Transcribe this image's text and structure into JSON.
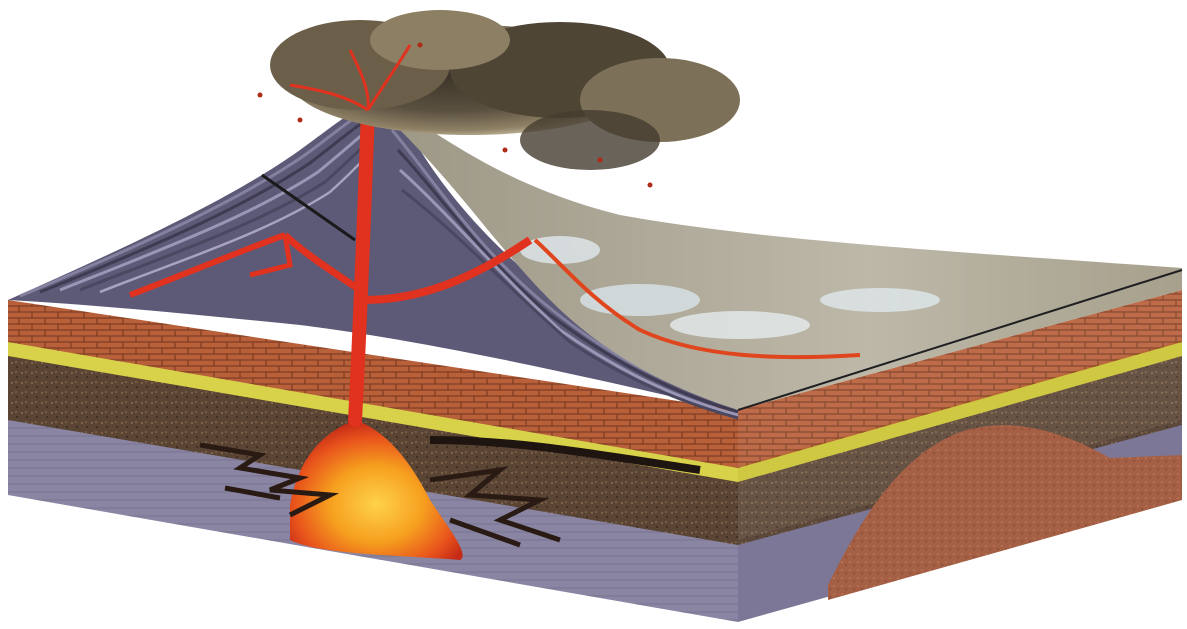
{
  "diagram": {
    "subject": "volcano-cross-section",
    "labels": [],
    "colors": {
      "background": "#ffffff",
      "rock_layer_gray": "#8a85a3",
      "brick_layer": "#b8603a",
      "yellow_band": "#d8d24a",
      "brown_layer": "#5a4434",
      "magma_red": "#e0321e",
      "magma_core": "#f4a21c",
      "ash_cloud": "#5b5141",
      "slope_strata": "#5d5a78",
      "intrusion_brown": "#a45f45"
    }
  }
}
